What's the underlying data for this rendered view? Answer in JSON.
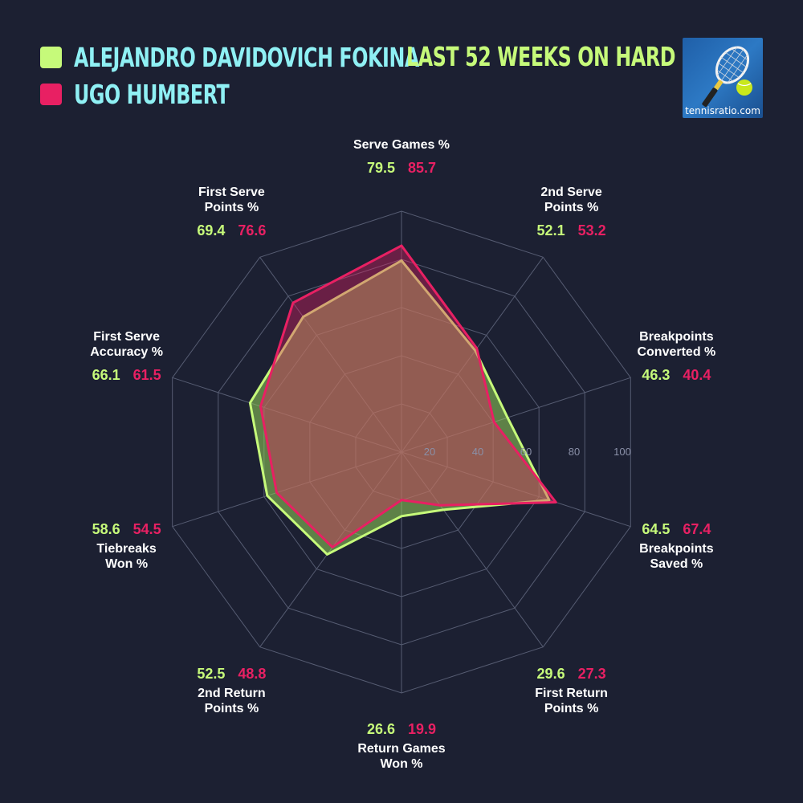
{
  "legend": {
    "player_a": "ALEJANDRO DAVIDOVICH FOKINA",
    "player_b": "UGO HUMBERT"
  },
  "subtitle": "LAST 52 WEEKS ON HARD",
  "logo": {
    "text": "tennisratio.com"
  },
  "colors": {
    "background": "#1c2032",
    "player_a": "#c6fa7a",
    "player_b": "#e82063",
    "name_text": "#8ff0f4",
    "grid": "#565c72",
    "tick": "#8a90a8"
  },
  "chart_data": {
    "type": "radar",
    "title": "LAST 52 WEEKS ON HARD",
    "rlim": [
      0,
      100
    ],
    "rticks": [
      "20",
      "40",
      "60",
      "80",
      "100"
    ],
    "categories": [
      {
        "key": "serve_games",
        "label": [
          "Serve Games %"
        ]
      },
      {
        "key": "second_serve_points",
        "label": [
          "2nd Serve",
          "Points %"
        ]
      },
      {
        "key": "breakpoints_converted",
        "label": [
          "Breakpoints",
          "Converted %"
        ]
      },
      {
        "key": "breakpoints_saved",
        "label": [
          "Breakpoints",
          "Saved %"
        ]
      },
      {
        "key": "first_return_points",
        "label": [
          "First Return",
          "Points %"
        ]
      },
      {
        "key": "return_games_won",
        "label": [
          "Return Games",
          "Won %"
        ]
      },
      {
        "key": "second_return_points",
        "label": [
          "2nd Return",
          "Points %"
        ]
      },
      {
        "key": "tiebreaks_won",
        "label": [
          "Tiebreaks",
          "Won %"
        ]
      },
      {
        "key": "first_serve_accuracy",
        "label": [
          "First Serve",
          "Accuracy %"
        ]
      },
      {
        "key": "first_serve_points",
        "label": [
          "First Serve",
          "Points %"
        ]
      }
    ],
    "series": [
      {
        "name": "ALEJANDRO DAVIDOVICH FOKINA",
        "values": [
          "79.5",
          "52.1",
          "46.3",
          "64.5",
          "29.6",
          "26.6",
          "52.5",
          "58.6",
          "66.1",
          "69.4"
        ]
      },
      {
        "name": "UGO HUMBERT",
        "values": [
          "85.7",
          "53.2",
          "40.4",
          "67.4",
          "27.3",
          "19.9",
          "48.8",
          "54.5",
          "61.5",
          "76.6"
        ]
      }
    ]
  }
}
